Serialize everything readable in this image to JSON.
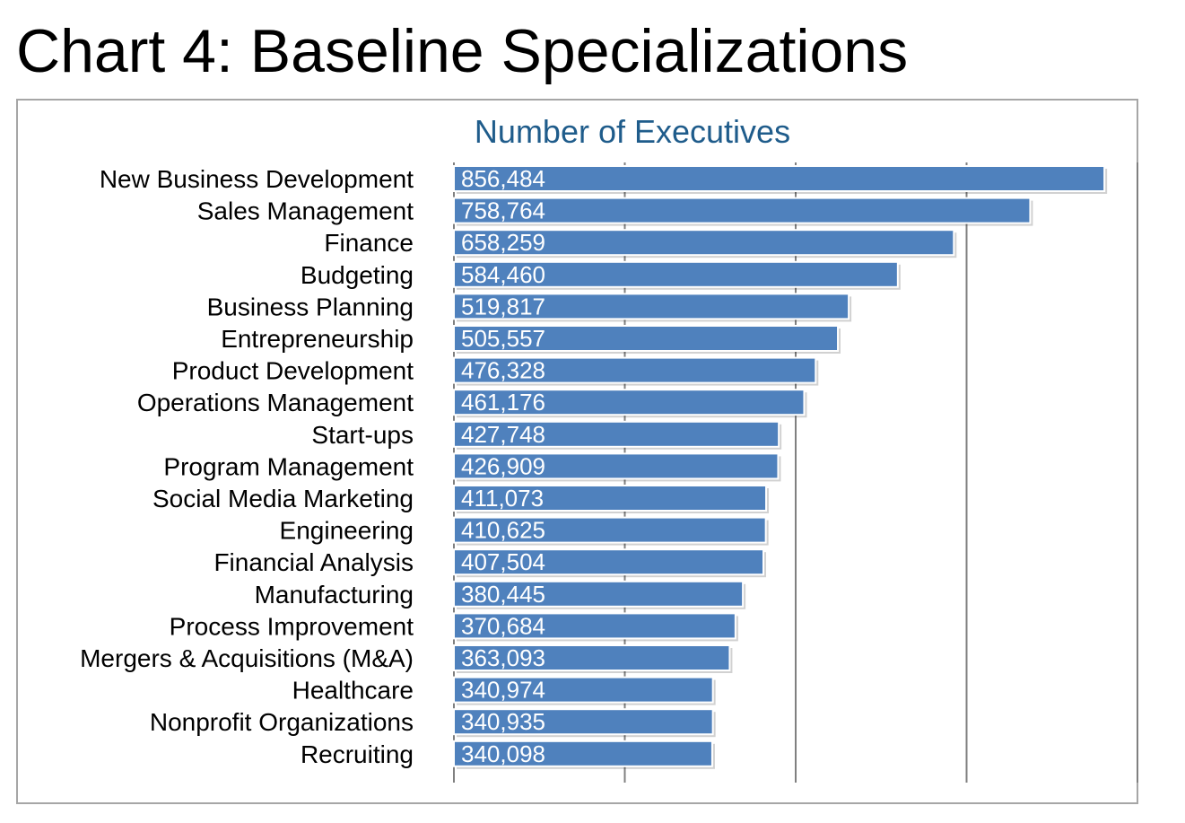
{
  "page": {
    "title": "Chart 4: Baseline Specializations"
  },
  "colors": {
    "bar": "#4f81bd",
    "bar_outline": "#ffffff",
    "axis": "#808080",
    "value_label": "#ffffff",
    "category_label": "#000000",
    "chart_title": "#1f5c8b"
  },
  "chart_data": {
    "type": "bar",
    "orientation": "horizontal",
    "title": "Number of Executives",
    "xlabel": "",
    "ylabel": "",
    "categories": [
      "New Business Development",
      "Sales Management",
      "Finance",
      "Budgeting",
      "Business Planning",
      "Entrepreneurship",
      "Product Development",
      "Operations Management",
      "Start-ups",
      "Program Management",
      "Social Media Marketing",
      "Engineering",
      "Financial Analysis",
      "Manufacturing",
      "Process Improvement",
      "Mergers & Acquisitions (M&A)",
      "Healthcare",
      "Nonprofit Organizations",
      "Recruiting"
    ],
    "values": [
      856484,
      758764,
      658259,
      584460,
      519817,
      505557,
      476328,
      461176,
      427748,
      426909,
      411073,
      410625,
      407504,
      380445,
      370684,
      363093,
      340974,
      340935,
      340098
    ],
    "value_labels": [
      "856,484",
      "758,764",
      "658,259",
      "584,460",
      "519,817",
      "505,557",
      "476,328",
      "461,176",
      "427,748",
      "426,909",
      "411,073",
      "410,625",
      "407,504",
      "380,445",
      "370,684",
      "363,093",
      "340,974",
      "340,935",
      "340,098"
    ],
    "xlim": [
      0,
      900000
    ],
    "grid": true,
    "tick_labels_shown": false,
    "legend": "none"
  }
}
